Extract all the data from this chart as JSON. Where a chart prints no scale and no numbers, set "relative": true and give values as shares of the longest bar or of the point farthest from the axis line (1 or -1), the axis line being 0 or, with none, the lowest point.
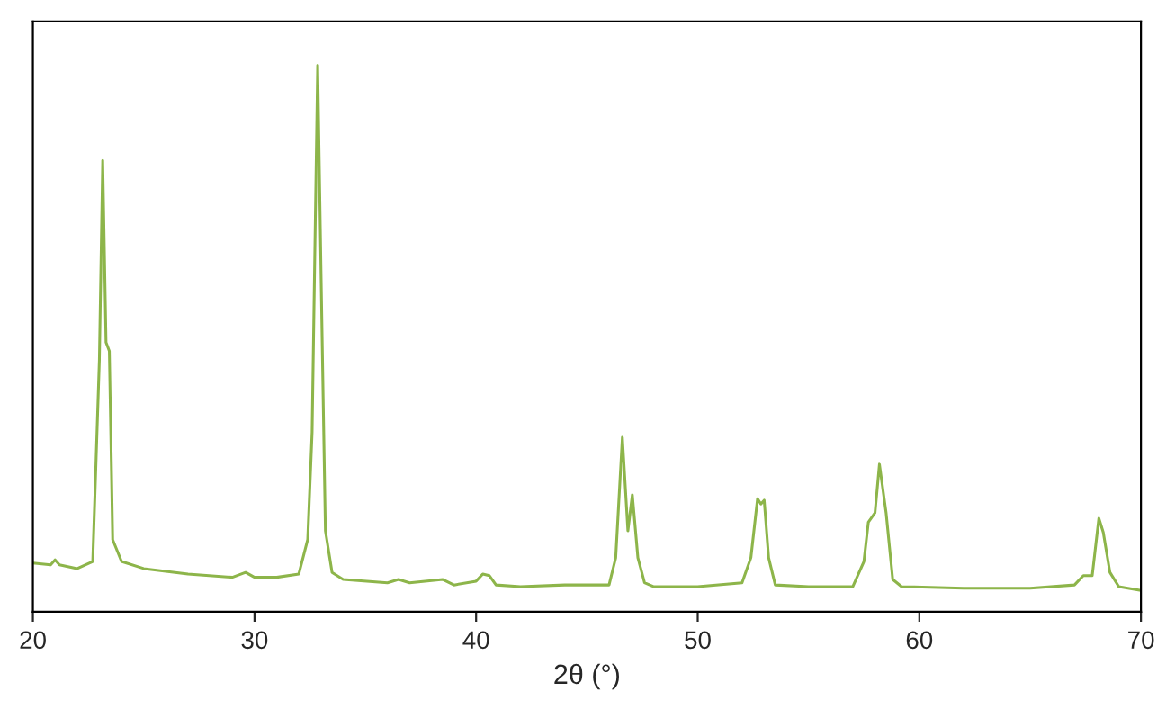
{
  "chart_data": {
    "type": "line",
    "xlabel": "2θ (°)",
    "relative": true,
    "xlim": [
      20,
      70
    ],
    "xticks": [
      20,
      30,
      40,
      50,
      60,
      70
    ],
    "grid": false,
    "marker": "none",
    "line_style": "solid",
    "series": [
      {
        "color": "#8db54a",
        "x": [
          20,
          20.8,
          21.0,
          21.2,
          22,
          22.7,
          23.0,
          23.15,
          23.3,
          23.45,
          23.6,
          24,
          25,
          27,
          29,
          29.6,
          30,
          31,
          32,
          32.4,
          32.6,
          32.85,
          33.0,
          33.2,
          33.5,
          34,
          36,
          36.5,
          37,
          38.5,
          39,
          40,
          40.3,
          40.6,
          40.9,
          42,
          44,
          46,
          46.3,
          46.6,
          46.85,
          47.05,
          47.3,
          47.6,
          48,
          50,
          52,
          52.4,
          52.7,
          52.85,
          53.0,
          53.2,
          53.5,
          55,
          57,
          57.5,
          57.7,
          58.0,
          58.2,
          58.5,
          58.8,
          59.2,
          62,
          65,
          67,
          67.4,
          67.8,
          68.1,
          68.3,
          68.6,
          69,
          70
        ],
        "values": [
          0.089,
          0.086,
          0.095,
          0.086,
          0.079,
          0.092,
          0.461,
          0.826,
          0.493,
          0.477,
          0.132,
          0.092,
          0.079,
          0.069,
          0.063,
          0.072,
          0.063,
          0.063,
          0.069,
          0.132,
          0.329,
          1.0,
          0.625,
          0.148,
          0.072,
          0.059,
          0.053,
          0.059,
          0.053,
          0.059,
          0.049,
          0.056,
          0.069,
          0.066,
          0.049,
          0.046,
          0.049,
          0.049,
          0.099,
          0.319,
          0.148,
          0.214,
          0.099,
          0.053,
          0.046,
          0.046,
          0.053,
          0.099,
          0.207,
          0.197,
          0.204,
          0.099,
          0.049,
          0.046,
          0.046,
          0.092,
          0.164,
          0.181,
          0.27,
          0.181,
          0.059,
          0.046,
          0.043,
          0.043,
          0.049,
          0.066,
          0.066,
          0.171,
          0.145,
          0.072,
          0.046,
          0.039
        ]
      }
    ]
  }
}
